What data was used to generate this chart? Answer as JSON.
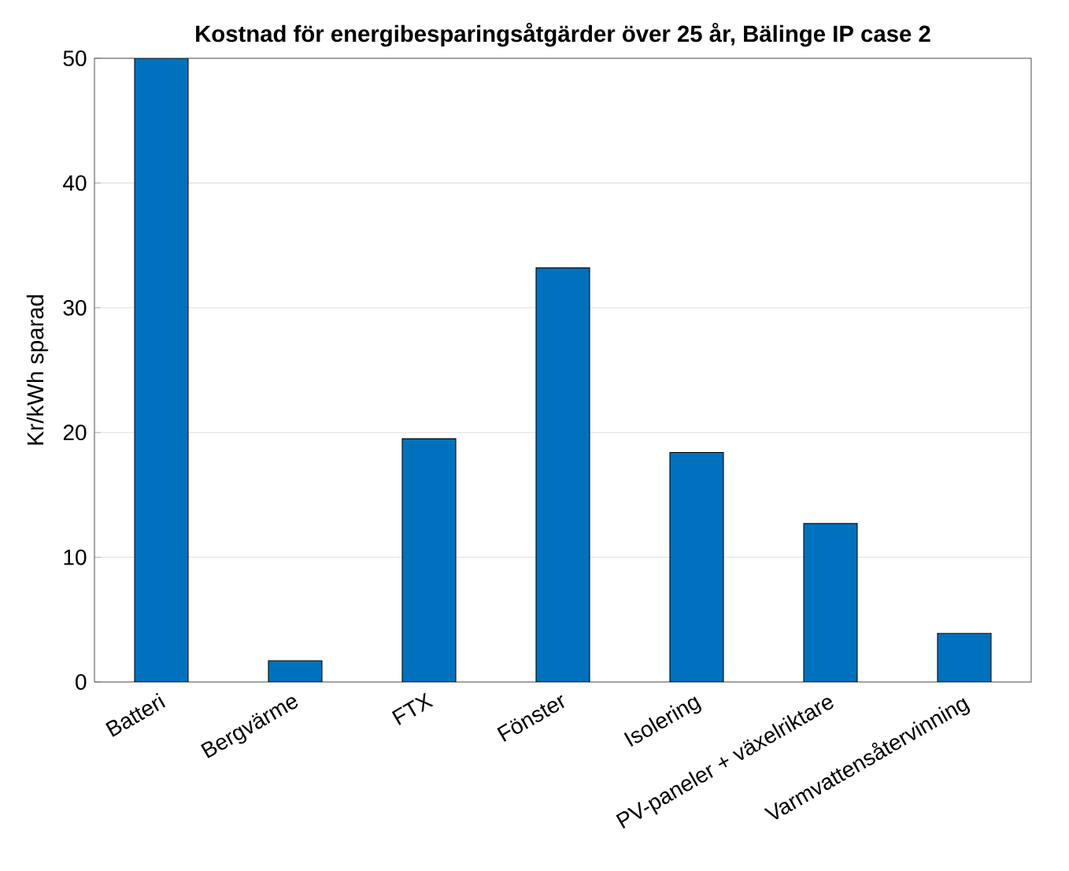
{
  "chart_data": {
    "type": "bar",
    "title": "Kostnad för energibesparingsåtgärder över 25 år, Bälinge IP case 2",
    "ylabel": "Kr/kWh sparad",
    "categories": [
      "Batteri",
      "Bergvärme",
      "FTX",
      "Fönster",
      "Isolering",
      "PV-paneler + växelriktare",
      "Varmvattensåtervinning"
    ],
    "values": [
      50,
      1.7,
      19.5,
      33.2,
      18.4,
      12.7,
      3.9
    ],
    "color": "#0072bd",
    "ylim": [
      0,
      50
    ],
    "yticks": [
      0,
      10,
      20,
      30,
      40,
      50
    ],
    "grid": "y"
  }
}
